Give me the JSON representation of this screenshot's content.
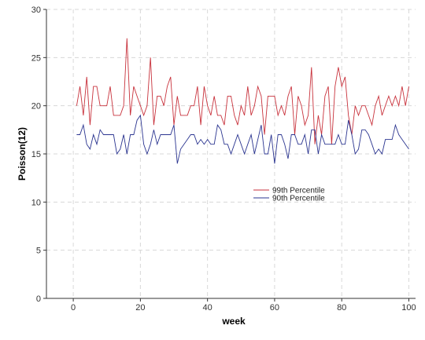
{
  "chart_data": {
    "type": "line",
    "xlabel": "week",
    "ylabel": "Poisson(12)",
    "xlim": [
      -8,
      102
    ],
    "ylim": [
      0,
      30
    ],
    "xticks": [
      0,
      20,
      40,
      60,
      80,
      100
    ],
    "yticks": [
      0,
      5,
      10,
      15,
      20,
      25,
      30
    ],
    "grid": true,
    "legend_position": "center-right",
    "x": [
      1,
      2,
      3,
      4,
      5,
      6,
      7,
      8,
      9,
      10,
      11,
      12,
      13,
      14,
      15,
      16,
      17,
      18,
      19,
      20,
      21,
      22,
      23,
      24,
      25,
      26,
      27,
      28,
      29,
      30,
      31,
      32,
      33,
      34,
      35,
      36,
      37,
      38,
      39,
      40,
      41,
      42,
      43,
      44,
      45,
      46,
      47,
      48,
      49,
      50,
      51,
      52,
      53,
      54,
      55,
      56,
      57,
      58,
      59,
      60,
      61,
      62,
      63,
      64,
      65,
      66,
      67,
      68,
      69,
      70,
      71,
      72,
      73,
      74,
      75,
      76,
      77,
      78,
      79,
      80,
      81,
      82,
      83,
      84,
      85,
      86,
      87,
      88,
      89,
      90,
      91,
      92,
      93,
      94,
      95,
      96,
      97,
      98,
      99,
      100
    ],
    "series": [
      {
        "name": "99th Percentile",
        "color": "#c8323c",
        "values": [
          20,
          22,
          19,
          23,
          18,
          22,
          22,
          20,
          20,
          20,
          22,
          19,
          19,
          19,
          20,
          27,
          19,
          22,
          21,
          20,
          19,
          20,
          25,
          18,
          21,
          21,
          20,
          22,
          23,
          18,
          21,
          19,
          19,
          19,
          20,
          20,
          22,
          18,
          22,
          20,
          19,
          21,
          19,
          19,
          18,
          21,
          21,
          19,
          18,
          20,
          19,
          22,
          19,
          20,
          22,
          21,
          17,
          21,
          21,
          21,
          19,
          20,
          19,
          21,
          22,
          17,
          21,
          20,
          18,
          19,
          24,
          16,
          19,
          17,
          21,
          22,
          16,
          22,
          24,
          22,
          23,
          19,
          17,
          20,
          19,
          20,
          20,
          19,
          18,
          20,
          21,
          19,
          20,
          21,
          20,
          21,
          20,
          22,
          20,
          22
        ]
      },
      {
        "name": "90th Percentile",
        "color": "#2b3590",
        "values": [
          17,
          17,
          18,
          16,
          15.5,
          17,
          16,
          17.5,
          17,
          17,
          17,
          17,
          15,
          15.5,
          17,
          15,
          17,
          17,
          18.5,
          19,
          16,
          15,
          16,
          17.5,
          16,
          17,
          17,
          17,
          17,
          18,
          14,
          15.5,
          16,
          16.5,
          17,
          17,
          16,
          16.5,
          16,
          16.5,
          16,
          16,
          18,
          17.5,
          16,
          16,
          15,
          16,
          17,
          16,
          15,
          16,
          17,
          15,
          16.5,
          18,
          15,
          15,
          17,
          14,
          17,
          17,
          16,
          14.5,
          17,
          17,
          16,
          16,
          17,
          15,
          17.5,
          17.5,
          15,
          17,
          16,
          16,
          16,
          16,
          17,
          16,
          16,
          18.5,
          17,
          15,
          15.5,
          17.5,
          17.5,
          17,
          16,
          15,
          15.5,
          15,
          16.5,
          16.5,
          16.5,
          18,
          17,
          16.5,
          16,
          15.5
        ]
      }
    ]
  }
}
